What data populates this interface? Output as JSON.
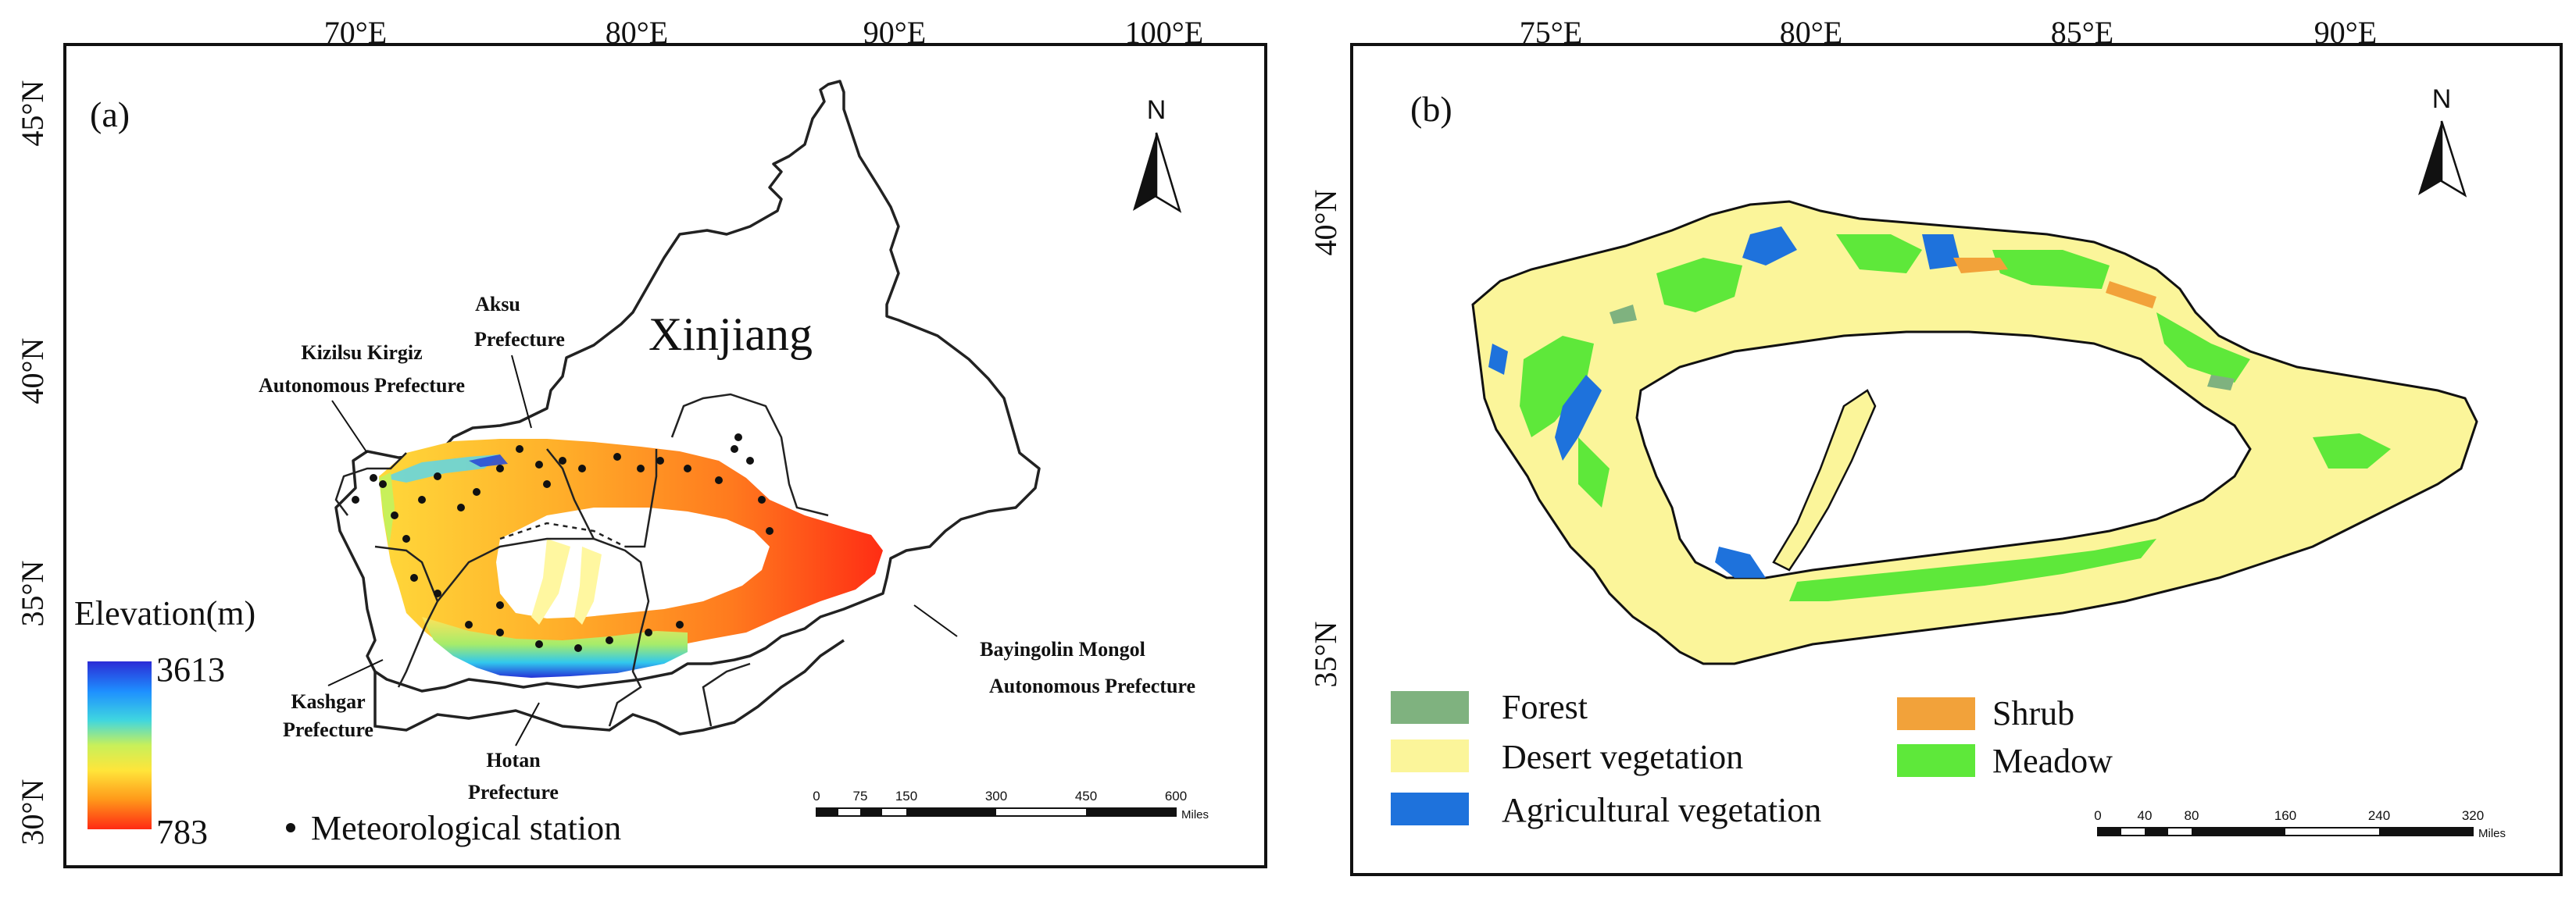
{
  "panel_a": {
    "label": "(a)",
    "lon_ticks": [
      "70°E",
      "80°E",
      "90°E",
      "100°E"
    ],
    "lat_ticks": [
      "45°N",
      "40°N",
      "35°N",
      "30°N"
    ],
    "north": "N",
    "region_title": "Xinjiang",
    "prefectures": {
      "aksu_1": "Aksu",
      "aksu_2": "Prefecture",
      "kizilsu_1": "Kizilsu Kirgiz",
      "kizilsu_2": "Autonomous Prefecture",
      "kashgar_1": "Kashgar",
      "kashgar_2": "Prefecture",
      "hotan_1": "Hotan",
      "hotan_2": "Prefecture",
      "bayingolin_1": "Bayingolin Mongol",
      "bayingolin_2": "Autonomous Prefecture"
    },
    "legend": {
      "title": "Elevation(m)",
      "max": "3613",
      "min": "783",
      "station": "Meteorological station"
    },
    "scale_bar": {
      "ticks": [
        "0",
        "75",
        "150",
        "300",
        "450",
        "600"
      ],
      "unit": "Miles"
    }
  },
  "panel_b": {
    "label": "(b)",
    "lon_ticks": [
      "75°E",
      "80°E",
      "85°E",
      "90°E"
    ],
    "lat_ticks": [
      "40°N",
      "35°N"
    ],
    "north": "N",
    "legend": {
      "forest": "Forest",
      "desert": "Desert vegetation",
      "agri": "Agricultural vegetation",
      "shrub": "Shrub",
      "meadow": "Meadow"
    },
    "scale_bar": {
      "ticks": [
        "0",
        "40",
        "80",
        "160",
        "240",
        "320"
      ],
      "unit": "Miles"
    }
  },
  "colors": {
    "forest": "#7fb27f",
    "desert": "#fbf59a",
    "agri": "#1e72dc",
    "shrub": "#f2a23a",
    "meadow": "#5ee83a"
  }
}
